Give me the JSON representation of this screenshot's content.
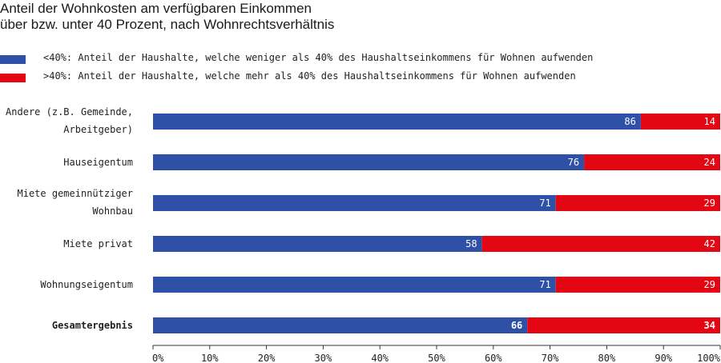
{
  "title_line1": "Anteil der Wohnkosten am verfügbaren Einkommen",
  "title_line2": "über bzw. unter 40 Prozent, nach Wohnrechtsverhältnis",
  "colors": {
    "below": "#2e50a6",
    "above": "#e30613",
    "axis": "#333333",
    "text": "#222222"
  },
  "chart_data": {
    "type": "bar",
    "orientation": "horizontal",
    "stacked": true,
    "title": "Anteil der Wohnkosten am verfügbaren Einkommen über bzw. unter 40 Prozent, nach Wohnrechtsverhältnis",
    "categories": [
      [
        "Andere (z.B. Gemeinde,",
        "Arbeitgeber)"
      ],
      [
        "Hauseigentum"
      ],
      [
        "Miete gemeinnütziger",
        "Wohnbau"
      ],
      [
        "Miete privat"
      ],
      [
        "Wohnungseigentum"
      ],
      [
        "Gesamtergebnis"
      ]
    ],
    "bold_categories": [
      "Gesamtergebnis"
    ],
    "series": [
      {
        "name": "<40%",
        "legend": "<40%: Anteil der Haushalte, welche weniger als 40% des Haushaltseinkommens für Wohnen aufwenden",
        "values": [
          86,
          76,
          71,
          58,
          71,
          66
        ]
      },
      {
        "name": ">40%",
        "legend": ">40%: Anteil der Haushalte, welche mehr als 40% des Haushaltseinkommens für Wohnen aufwenden",
        "values": [
          14,
          24,
          29,
          42,
          29,
          34
        ]
      }
    ],
    "xlim": [
      0,
      100
    ],
    "x_ticks": [
      "0%",
      "10%",
      "20%",
      "30%",
      "40%",
      "50%",
      "60%",
      "70%",
      "80%",
      "90%",
      "100%"
    ],
    "legend_position": "top-left"
  }
}
